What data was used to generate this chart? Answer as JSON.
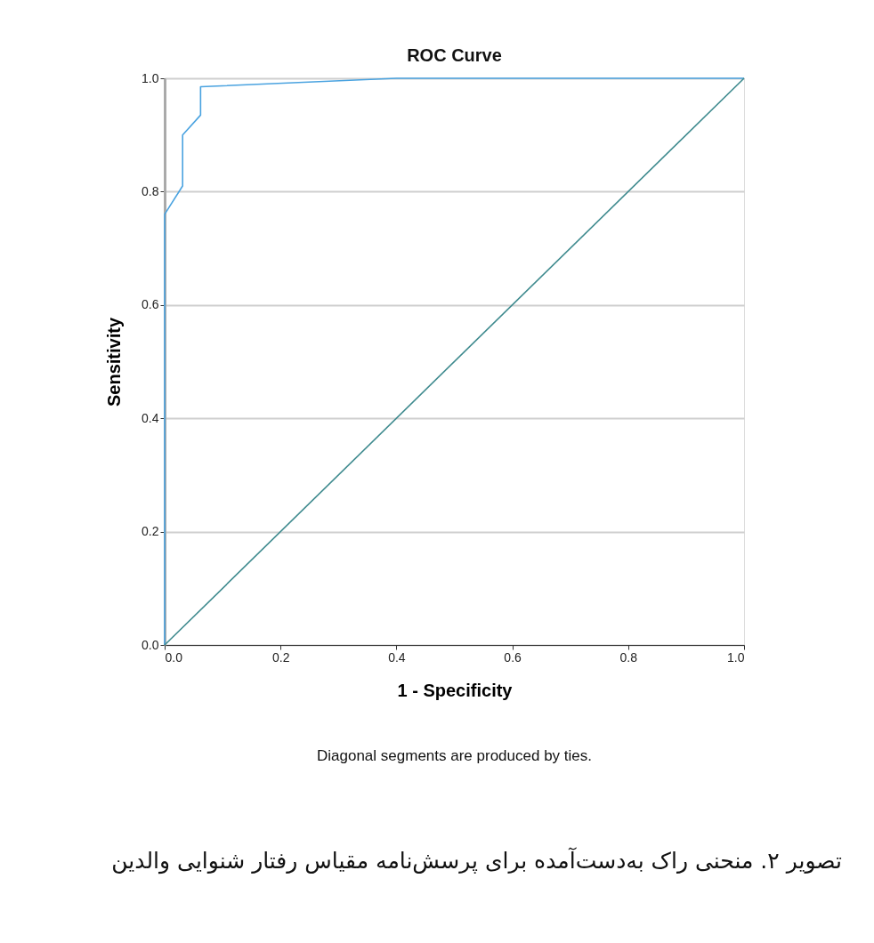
{
  "chart_data": {
    "type": "line",
    "title": "ROC Curve",
    "xlabel": "1 - Specificity",
    "ylabel": "Sensitivity",
    "xlim": [
      0,
      1
    ],
    "ylim": [
      0,
      1
    ],
    "xticks": [
      {
        "value": 0,
        "label": "0.0"
      },
      {
        "value": 0.2,
        "label": "0.2"
      },
      {
        "value": 0.4,
        "label": "0.4"
      },
      {
        "value": 0.6,
        "label": "0.6"
      },
      {
        "value": 0.8,
        "label": "0.8"
      },
      {
        "value": 1,
        "label": "1.0"
      }
    ],
    "yticks": [
      {
        "value": 0,
        "label": "0.0"
      },
      {
        "value": 0.2,
        "label": "0.2"
      },
      {
        "value": 0.4,
        "label": "0.4"
      },
      {
        "value": 0.6,
        "label": "0.6"
      },
      {
        "value": 0.8,
        "label": "0.8"
      },
      {
        "value": 1,
        "label": "1.0"
      }
    ],
    "grid": "y",
    "marker": "none",
    "line_style": "solid",
    "series": [
      {
        "color": "#4aa3e0",
        "x": [
          0,
          0,
          0.031,
          0.031,
          0.062,
          0.062,
          0.4,
          1
        ],
        "values": [
          0,
          0.76,
          0.81,
          0.9,
          0.935,
          0.985,
          1,
          1
        ]
      },
      {
        "color": "#3e8a8e",
        "x": [
          0,
          1
        ],
        "values": [
          0,
          1
        ]
      }
    ],
    "annotations": [
      "Diagonal segments are produced by ties.",
      "تصویر ۲. منحنی راک به‌دست‌آمده برای پرسش‌نامه مقیاس رفتار شنوایی والدین"
    ]
  }
}
